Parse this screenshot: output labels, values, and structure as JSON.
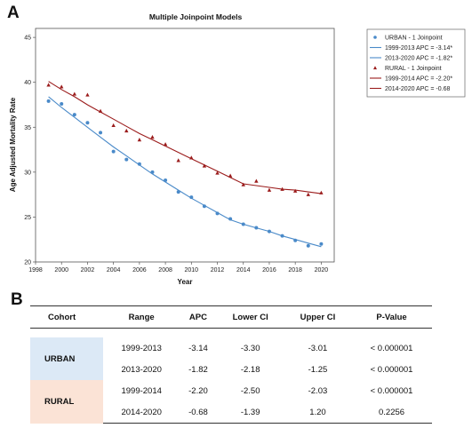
{
  "panel_a_label": "A",
  "panel_b_label": "B",
  "chart_data": {
    "type": "line",
    "title": "Multiple Joinpoint Models",
    "xlabel": "Year",
    "ylabel": "Age Adjusted Mortality Rate",
    "xlim": [
      1998,
      2021
    ],
    "ylim": [
      20,
      46
    ],
    "x_ticks": [
      1998,
      2000,
      2002,
      2004,
      2006,
      2008,
      2010,
      2012,
      2014,
      2016,
      2018,
      2020
    ],
    "y_ticks": [
      20,
      25,
      30,
      35,
      40,
      45
    ],
    "grid": false,
    "legend_position": "right",
    "legend": [
      {
        "label": "URBAN - 1 Joinpoint",
        "kind": "circle",
        "color": "#4a8ac9"
      },
      {
        "label": "1999-2013 APC  = -3.14*",
        "kind": "line",
        "color": "#4a8ac9"
      },
      {
        "label": "2013-2020 APC  = -1.82*",
        "kind": "line",
        "color": "#4a8ac9"
      },
      {
        "label": "RURAL - 1 Joinpoint",
        "kind": "triangle",
        "color": "#9b1c1c"
      },
      {
        "label": "1999-2014 APC  = -2.20*",
        "kind": "line",
        "color": "#9b1c1c"
      },
      {
        "label": "2014-2020 APC  = -0.68",
        "kind": "line",
        "color": "#9b1c1c"
      }
    ],
    "series": [
      {
        "name": "URBAN - 1 Joinpoint",
        "color": "#4a8ac9",
        "marker": "circle",
        "x": [
          1999,
          2000,
          2001,
          2002,
          2003,
          2004,
          2005,
          2006,
          2007,
          2008,
          2009,
          2010,
          2011,
          2012,
          2013,
          2014,
          2015,
          2016,
          2017,
          2018,
          2019,
          2020
        ],
        "observed": [
          37.9,
          37.6,
          36.4,
          35.5,
          34.4,
          32.3,
          31.4,
          30.9,
          30.0,
          29.1,
          27.8,
          27.2,
          26.2,
          25.4,
          24.8,
          24.2,
          23.8,
          23.4,
          22.9,
          22.4,
          21.8,
          22.0
        ],
        "fitted": [
          38.4,
          37.2,
          36.1,
          35.0,
          33.9,
          32.8,
          31.8,
          30.8,
          29.8,
          28.9,
          28.0,
          27.1,
          26.3,
          25.5,
          24.7,
          24.2,
          23.8,
          23.4,
          22.9,
          22.5,
          22.1,
          21.7
        ]
      },
      {
        "name": "RURAL - 1 Joinpoint",
        "color": "#9b1c1c",
        "marker": "triangle",
        "x": [
          1999,
          2000,
          2001,
          2002,
          2003,
          2004,
          2005,
          2006,
          2007,
          2008,
          2009,
          2010,
          2011,
          2012,
          2013,
          2014,
          2015,
          2016,
          2017,
          2018,
          2019,
          2020
        ],
        "observed": [
          39.7,
          39.5,
          38.7,
          38.6,
          36.8,
          35.2,
          34.6,
          33.6,
          33.9,
          33.1,
          31.3,
          31.6,
          30.7,
          29.9,
          29.6,
          28.6,
          29.0,
          28.0,
          28.1,
          27.9,
          27.5,
          27.7
        ],
        "fitted": [
          40.1,
          39.2,
          38.4,
          37.5,
          36.7,
          35.9,
          35.1,
          34.3,
          33.6,
          32.9,
          32.2,
          31.5,
          30.8,
          30.1,
          29.4,
          28.7,
          28.5,
          28.3,
          28.1,
          28.0,
          27.8,
          27.6
        ]
      }
    ]
  },
  "table": {
    "headers": [
      "Cohort",
      "Range",
      "APC",
      "Lower CI",
      "Upper CI",
      "P-Value"
    ],
    "groups": [
      {
        "cohort": "URBAN",
        "rows": [
          {
            "range": "1999-2013",
            "apc": "-3.14",
            "lower": "-3.30",
            "upper": "-3.01",
            "p": "< 0.000001"
          },
          {
            "range": "2013-2020",
            "apc": "-1.82",
            "lower": "-2.18",
            "upper": "-1.25",
            "p": "< 0.000001"
          }
        ]
      },
      {
        "cohort": "RURAL",
        "rows": [
          {
            "range": "1999-2014",
            "apc": "-2.20",
            "lower": "-2.50",
            "upper": "-2.03",
            "p": "< 0.000001"
          },
          {
            "range": "2014-2020",
            "apc": "-0.68",
            "lower": "-1.39",
            "upper": "1.20",
            "p": "0.2256"
          }
        ]
      }
    ]
  }
}
